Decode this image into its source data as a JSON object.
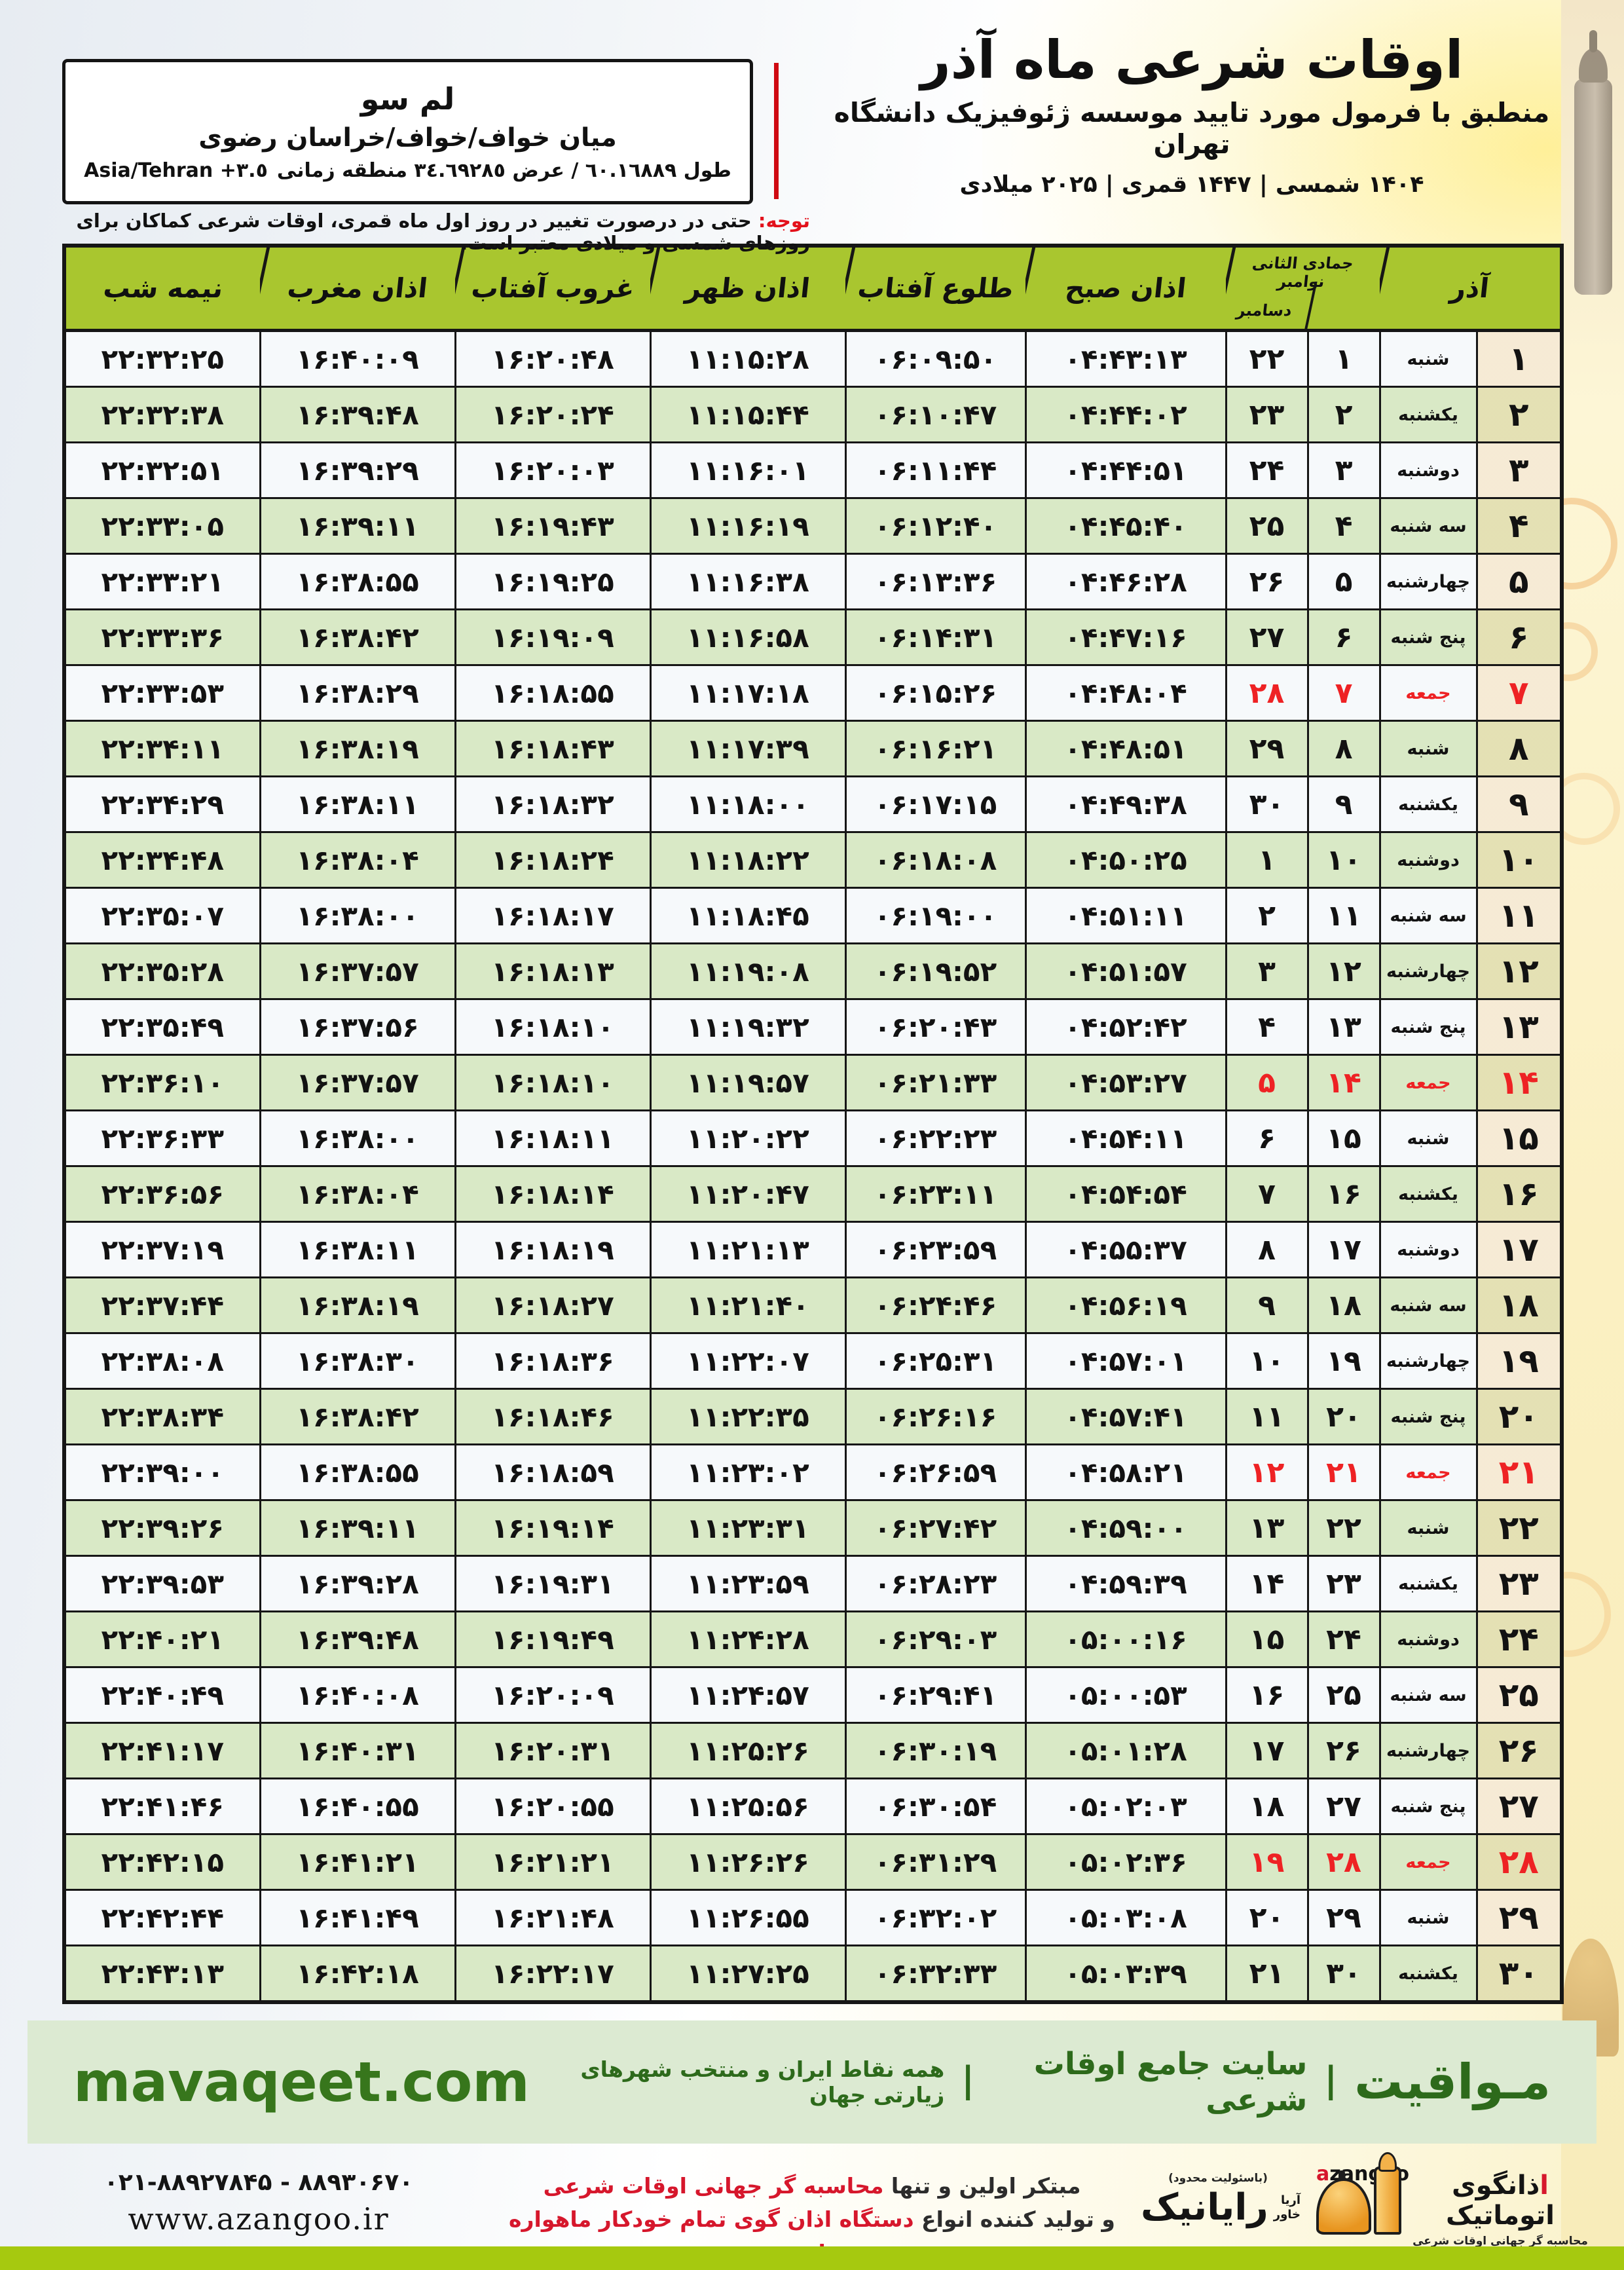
{
  "header": {
    "title": "اوقات شرعی ماه آذر",
    "subtitle": "منطبق با فرمول مورد تایید موسسه ژئوفیزیک دانشگاه تهران",
    "years": "۱۴۰۴ شمسی | ۱۴۴۷ قمری | ۲۰۲۵ میلادی"
  },
  "location": {
    "name": "لم سو",
    "region": "میان خواف/خواف/خراسان رضوی",
    "coords_rtl": "طول ٦٠.١٦٨٨٩ / عرض ٣٤.٦٩٢٨٥ منطقه زمانی",
    "coords_ltr": "Asia/Tehran +٣.٥"
  },
  "notice": {
    "label": "توجه:",
    "text": "حتی در درصورت تغییر در روز اول ماه قمری، اوقات شرعی کماکان برای روزهای شمسی و میلادی معتبر است."
  },
  "table": {
    "headers": {
      "azar": "آذر",
      "lunar": "جمادی الثانی",
      "greg_top": "نوامبر",
      "greg_bottom": "دسامبر",
      "sobh": "اذان صبح",
      "tolu": "طلوع آفتاب",
      "zohr": "اذان ظهر",
      "ghorub": "غروب آفتاب",
      "maghreb": "اذان مغرب",
      "nimeshab": "نیمه شب"
    },
    "rows": [
      {
        "azar": 1,
        "weekday": "شنبه",
        "lunar": 1,
        "greg": 22,
        "sobh": "04:43:13",
        "tolu": "06:09:50",
        "zohr": "11:15:28",
        "ghorub": "16:20:48",
        "maghreb": "16:40:09",
        "nimeshab": "22:32:25",
        "friday": false
      },
      {
        "azar": 2,
        "weekday": "یکشنبه",
        "lunar": 2,
        "greg": 23,
        "sobh": "04:44:02",
        "tolu": "06:10:47",
        "zohr": "11:15:44",
        "ghorub": "16:20:24",
        "maghreb": "16:39:48",
        "nimeshab": "22:32:38",
        "friday": false
      },
      {
        "azar": 3,
        "weekday": "دوشنبه",
        "lunar": 3,
        "greg": 24,
        "sobh": "04:44:51",
        "tolu": "06:11:44",
        "zohr": "11:16:01",
        "ghorub": "16:20:03",
        "maghreb": "16:39:29",
        "nimeshab": "22:32:51",
        "friday": false
      },
      {
        "azar": 4,
        "weekday": "سه شنبه",
        "lunar": 4,
        "greg": 25,
        "sobh": "04:45:40",
        "tolu": "06:12:40",
        "zohr": "11:16:19",
        "ghorub": "16:19:43",
        "maghreb": "16:39:11",
        "nimeshab": "22:33:05",
        "friday": false
      },
      {
        "azar": 5,
        "weekday": "چهارشنبه",
        "lunar": 5,
        "greg": 26,
        "sobh": "04:46:28",
        "tolu": "06:13:36",
        "zohr": "11:16:38",
        "ghorub": "16:19:25",
        "maghreb": "16:38:55",
        "nimeshab": "22:33:21",
        "friday": false
      },
      {
        "azar": 6,
        "weekday": "پنج شنبه",
        "lunar": 6,
        "greg": 27,
        "sobh": "04:47:16",
        "tolu": "06:14:31",
        "zohr": "11:16:58",
        "ghorub": "16:19:09",
        "maghreb": "16:38:42",
        "nimeshab": "22:33:36",
        "friday": false
      },
      {
        "azar": 7,
        "weekday": "جمعه",
        "lunar": 7,
        "greg": 28,
        "sobh": "04:48:04",
        "tolu": "06:15:26",
        "zohr": "11:17:18",
        "ghorub": "16:18:55",
        "maghreb": "16:38:29",
        "nimeshab": "22:33:53",
        "friday": true
      },
      {
        "azar": 8,
        "weekday": "شنبه",
        "lunar": 8,
        "greg": 29,
        "sobh": "04:48:51",
        "tolu": "06:16:21",
        "zohr": "11:17:39",
        "ghorub": "16:18:43",
        "maghreb": "16:38:19",
        "nimeshab": "22:34:11",
        "friday": false
      },
      {
        "azar": 9,
        "weekday": "یکشنبه",
        "lunar": 9,
        "greg": 30,
        "sobh": "04:49:38",
        "tolu": "06:17:15",
        "zohr": "11:18:00",
        "ghorub": "16:18:32",
        "maghreb": "16:38:11",
        "nimeshab": "22:34:29",
        "friday": false
      },
      {
        "azar": 10,
        "weekday": "دوشنبه",
        "lunar": 10,
        "greg": 1,
        "sobh": "04:50:25",
        "tolu": "06:18:08",
        "zohr": "11:18:22",
        "ghorub": "16:18:24",
        "maghreb": "16:38:04",
        "nimeshab": "22:34:48",
        "friday": false
      },
      {
        "azar": 11,
        "weekday": "سه شنبه",
        "lunar": 11,
        "greg": 2,
        "sobh": "04:51:11",
        "tolu": "06:19:00",
        "zohr": "11:18:45",
        "ghorub": "16:18:17",
        "maghreb": "16:38:00",
        "nimeshab": "22:35:07",
        "friday": false
      },
      {
        "azar": 12,
        "weekday": "چهارشنبه",
        "lunar": 12,
        "greg": 3,
        "sobh": "04:51:57",
        "tolu": "06:19:52",
        "zohr": "11:19:08",
        "ghorub": "16:18:13",
        "maghreb": "16:37:57",
        "nimeshab": "22:35:28",
        "friday": false
      },
      {
        "azar": 13,
        "weekday": "پنج شنبه",
        "lunar": 13,
        "greg": 4,
        "sobh": "04:52:42",
        "tolu": "06:20:43",
        "zohr": "11:19:32",
        "ghorub": "16:18:10",
        "maghreb": "16:37:56",
        "nimeshab": "22:35:49",
        "friday": false
      },
      {
        "azar": 14,
        "weekday": "جمعه",
        "lunar": 14,
        "greg": 5,
        "sobh": "04:53:27",
        "tolu": "06:21:33",
        "zohr": "11:19:57",
        "ghorub": "16:18:10",
        "maghreb": "16:37:57",
        "nimeshab": "22:36:10",
        "friday": true
      },
      {
        "azar": 15,
        "weekday": "شنبه",
        "lunar": 15,
        "greg": 6,
        "sobh": "04:54:11",
        "tolu": "06:22:23",
        "zohr": "11:20:22",
        "ghorub": "16:18:11",
        "maghreb": "16:38:00",
        "nimeshab": "22:36:33",
        "friday": false
      },
      {
        "azar": 16,
        "weekday": "یکشنبه",
        "lunar": 16,
        "greg": 7,
        "sobh": "04:54:54",
        "tolu": "06:23:11",
        "zohr": "11:20:47",
        "ghorub": "16:18:14",
        "maghreb": "16:38:04",
        "nimeshab": "22:36:56",
        "friday": false
      },
      {
        "azar": 17,
        "weekday": "دوشنبه",
        "lunar": 17,
        "greg": 8,
        "sobh": "04:55:37",
        "tolu": "06:23:59",
        "zohr": "11:21:13",
        "ghorub": "16:18:19",
        "maghreb": "16:38:11",
        "nimeshab": "22:37:19",
        "friday": false
      },
      {
        "azar": 18,
        "weekday": "سه شنبه",
        "lunar": 18,
        "greg": 9,
        "sobh": "04:56:19",
        "tolu": "06:24:46",
        "zohr": "11:21:40",
        "ghorub": "16:18:27",
        "maghreb": "16:38:19",
        "nimeshab": "22:37:44",
        "friday": false
      },
      {
        "azar": 19,
        "weekday": "چهارشنبه",
        "lunar": 19,
        "greg": 10,
        "sobh": "04:57:01",
        "tolu": "06:25:31",
        "zohr": "11:22:07",
        "ghorub": "16:18:36",
        "maghreb": "16:38:30",
        "nimeshab": "22:38:08",
        "friday": false
      },
      {
        "azar": 20,
        "weekday": "پنج شنبه",
        "lunar": 20,
        "greg": 11,
        "sobh": "04:57:41",
        "tolu": "06:26:16",
        "zohr": "11:22:35",
        "ghorub": "16:18:46",
        "maghreb": "16:38:42",
        "nimeshab": "22:38:34",
        "friday": false
      },
      {
        "azar": 21,
        "weekday": "جمعه",
        "lunar": 21,
        "greg": 12,
        "sobh": "04:58:21",
        "tolu": "06:26:59",
        "zohr": "11:23:02",
        "ghorub": "16:18:59",
        "maghreb": "16:38:55",
        "nimeshab": "22:39:00",
        "friday": true
      },
      {
        "azar": 22,
        "weekday": "شنبه",
        "lunar": 22,
        "greg": 13,
        "sobh": "04:59:00",
        "tolu": "06:27:42",
        "zohr": "11:23:31",
        "ghorub": "16:19:14",
        "maghreb": "16:39:11",
        "nimeshab": "22:39:26",
        "friday": false
      },
      {
        "azar": 23,
        "weekday": "یکشنبه",
        "lunar": 23,
        "greg": 14,
        "sobh": "04:59:39",
        "tolu": "06:28:23",
        "zohr": "11:23:59",
        "ghorub": "16:19:31",
        "maghreb": "16:39:28",
        "nimeshab": "22:39:53",
        "friday": false
      },
      {
        "azar": 24,
        "weekday": "دوشنبه",
        "lunar": 24,
        "greg": 15,
        "sobh": "05:00:16",
        "tolu": "06:29:03",
        "zohr": "11:24:28",
        "ghorub": "16:19:49",
        "maghreb": "16:39:48",
        "nimeshab": "22:40:21",
        "friday": false
      },
      {
        "azar": 25,
        "weekday": "سه شنبه",
        "lunar": 25,
        "greg": 16,
        "sobh": "05:00:53",
        "tolu": "06:29:41",
        "zohr": "11:24:57",
        "ghorub": "16:20:09",
        "maghreb": "16:40:08",
        "nimeshab": "22:40:49",
        "friday": false
      },
      {
        "azar": 26,
        "weekday": "چهارشنبه",
        "lunar": 26,
        "greg": 17,
        "sobh": "05:01:28",
        "tolu": "06:30:19",
        "zohr": "11:25:26",
        "ghorub": "16:20:31",
        "maghreb": "16:40:31",
        "nimeshab": "22:41:17",
        "friday": false
      },
      {
        "azar": 27,
        "weekday": "پنج شنبه",
        "lunar": 27,
        "greg": 18,
        "sobh": "05:02:03",
        "tolu": "06:30:54",
        "zohr": "11:25:56",
        "ghorub": "16:20:55",
        "maghreb": "16:40:55",
        "nimeshab": "22:41:46",
        "friday": false
      },
      {
        "azar": 28,
        "weekday": "جمعه",
        "lunar": 28,
        "greg": 19,
        "sobh": "05:02:36",
        "tolu": "06:31:29",
        "zohr": "11:26:26",
        "ghorub": "16:21:21",
        "maghreb": "16:41:21",
        "nimeshab": "22:42:15",
        "friday": true
      },
      {
        "azar": 29,
        "weekday": "شنبه",
        "lunar": 29,
        "greg": 20,
        "sobh": "05:03:08",
        "tolu": "06:32:02",
        "zohr": "11:26:55",
        "ghorub": "16:21:48",
        "maghreb": "16:41:49",
        "nimeshab": "22:42:44",
        "friday": false
      },
      {
        "azar": 30,
        "weekday": "یکشنبه",
        "lunar": 30,
        "greg": 21,
        "sobh": "05:03:39",
        "tolu": "06:32:33",
        "zohr": "11:27:25",
        "ghorub": "16:22:17",
        "maghreb": "16:42:18",
        "nimeshab": "22:43:13",
        "friday": false
      }
    ]
  },
  "footer": {
    "site_name": "مـواقیت",
    "site_sep": "|",
    "site_desc": "سایت جامع اوقات شرعی",
    "site_scope": "همه نقاط ایران و منتخب شهرهای زیارتی جهان",
    "site_url": "mavaqeet.com",
    "phones": "۰۲۱-۸۸۹۲۷۸۴۵ - ۸۸۹۳۰۶۷۰",
    "azangoo_url": "www.azangoo.ir",
    "slogan_1_black": "مبتکر اولین و تنها",
    "slogan_1_red": "محاسبه گر جهانی اوقات شرعی",
    "slogan_2_black": "و تولید کننده انواع",
    "slogan_2_red": "دستگاه اذان گوی تمام خودکار ماهواره ای",
    "rayanik_note": "(باسئولیت محدود)",
    "rayanik_name": "رایانیک",
    "rayanik_sub1": "آریا",
    "rayanik_sub2": "خاور",
    "azangoo_fa_red": "ا",
    "azangoo_fa_rest": "ذانگوی اتوماتیک",
    "azangoo_tagline": "محاسبه گر جهانی اوقات شرعی",
    "azangoo_latin_red": "a",
    "azangoo_latin_rest": "zangoo"
  },
  "colors": {
    "header_green": "#a9c62f",
    "row_green": "#d9e9c6",
    "friday_red": "#ee2224",
    "site_dark_green": "#2d6a1b",
    "bottom_bar_lime": "#a6c90f"
  }
}
